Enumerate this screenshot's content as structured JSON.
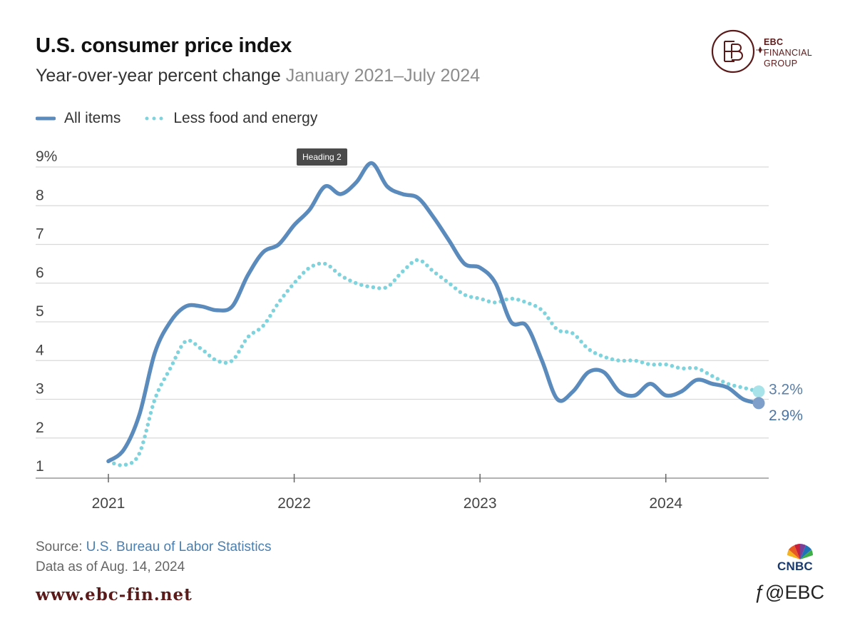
{
  "header": {
    "title": "U.S. consumer price index",
    "subtitle_main": "Year-over-year percent change",
    "subtitle_range": "January 2021–July 2024"
  },
  "legend": {
    "all_items": "All items",
    "core": "Less food and energy"
  },
  "tooltip": "Heading 2",
  "ebc_logo": {
    "line1": "EBC",
    "line2": "FINANCIAL",
    "line3": "GROUP"
  },
  "footer": {
    "source_label": "Source:",
    "source_link": "U.S. Bureau of Labor Statistics",
    "as_of": "Data as of Aug. 14, 2024",
    "website": "www.ebc-fin.net",
    "cnbc": "CNBC",
    "watermark": "@EBC"
  },
  "colors": {
    "all_items": "#5b8bbd",
    "core": "#7fd3dc",
    "grid": "#d9d9d9",
    "axis": "#999999",
    "brand": "#5a1a1a"
  },
  "chart_data": {
    "type": "line",
    "title": "U.S. consumer price index",
    "subtitle": "Year-over-year percent change January 2021–July 2024",
    "xlabel": "",
    "ylabel": "",
    "ylim": [
      1,
      9
    ],
    "y_ticks": [
      "1",
      "2",
      "3",
      "4",
      "5",
      "6",
      "7",
      "8",
      "9%"
    ],
    "x_ticks": [
      "2021",
      "2022",
      "2023",
      "2024"
    ],
    "x": [
      "2021-01",
      "2021-02",
      "2021-03",
      "2021-04",
      "2021-05",
      "2021-06",
      "2021-07",
      "2021-08",
      "2021-09",
      "2021-10",
      "2021-11",
      "2021-12",
      "2022-01",
      "2022-02",
      "2022-03",
      "2022-04",
      "2022-05",
      "2022-06",
      "2022-07",
      "2022-08",
      "2022-09",
      "2022-10",
      "2022-11",
      "2022-12",
      "2023-01",
      "2023-02",
      "2023-03",
      "2023-04",
      "2023-05",
      "2023-06",
      "2023-07",
      "2023-08",
      "2023-09",
      "2023-10",
      "2023-11",
      "2023-12",
      "2024-01",
      "2024-02",
      "2024-03",
      "2024-04",
      "2024-05",
      "2024-06",
      "2024-07"
    ],
    "series": [
      {
        "name": "All items",
        "style": "solid",
        "values": [
          1.4,
          1.7,
          2.6,
          4.2,
          5.0,
          5.4,
          5.4,
          5.3,
          5.4,
          6.2,
          6.8,
          7.0,
          7.5,
          7.9,
          8.5,
          8.3,
          8.6,
          9.1,
          8.5,
          8.3,
          8.2,
          7.7,
          7.1,
          6.5,
          6.4,
          6.0,
          5.0,
          4.9,
          4.0,
          3.0,
          3.2,
          3.7,
          3.7,
          3.2,
          3.1,
          3.4,
          3.1,
          3.2,
          3.5,
          3.4,
          3.3,
          3.0,
          2.9
        ]
      },
      {
        "name": "Less food and energy",
        "style": "dotted",
        "values": [
          1.4,
          1.3,
          1.6,
          3.0,
          3.8,
          4.5,
          4.3,
          4.0,
          4.0,
          4.6,
          4.9,
          5.5,
          6.0,
          6.4,
          6.5,
          6.2,
          6.0,
          5.9,
          5.9,
          6.3,
          6.6,
          6.3,
          6.0,
          5.7,
          5.6,
          5.5,
          5.6,
          5.5,
          5.3,
          4.8,
          4.7,
          4.3,
          4.1,
          4.0,
          4.0,
          3.9,
          3.9,
          3.8,
          3.8,
          3.6,
          3.4,
          3.3,
          3.2
        ]
      }
    ],
    "end_labels": [
      {
        "series": "Less food and energy",
        "label": "3.2%"
      },
      {
        "series": "All items",
        "label": "2.9%"
      }
    ]
  }
}
